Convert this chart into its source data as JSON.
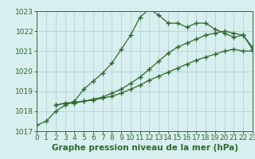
{
  "line1_x": [
    0,
    1,
    2,
    3,
    4,
    5,
    6,
    7,
    8,
    9,
    10,
    11,
    12,
    13,
    14,
    15,
    16,
    17,
    18,
    19,
    20,
    21,
    22,
    23
  ],
  "line1_y": [
    1017.3,
    1017.5,
    1018.0,
    1018.3,
    1018.5,
    1019.1,
    1019.5,
    1019.9,
    1020.4,
    1021.1,
    1021.8,
    1022.7,
    1023.1,
    1022.8,
    1022.4,
    1022.4,
    1022.2,
    1022.4,
    1022.4,
    1022.1,
    1021.9,
    1021.7,
    1021.8,
    1021.1
  ],
  "line2_x": [
    2,
    3,
    4,
    5,
    6,
    7,
    8,
    9,
    10,
    11,
    12,
    13,
    14,
    15,
    16,
    17,
    18,
    19,
    20,
    21,
    22,
    23
  ],
  "line2_y": [
    1018.3,
    1018.4,
    1018.4,
    1018.5,
    1018.6,
    1018.7,
    1018.9,
    1019.1,
    1019.4,
    1019.7,
    1020.1,
    1020.5,
    1020.9,
    1021.2,
    1021.4,
    1021.6,
    1021.8,
    1021.9,
    1022.0,
    1021.9,
    1021.8,
    1021.2
  ],
  "line3_x": [
    2,
    3,
    4,
    5,
    6,
    7,
    8,
    9,
    10,
    11,
    12,
    13,
    14,
    15,
    16,
    17,
    18,
    19,
    20,
    21,
    22,
    23
  ],
  "line3_y": [
    1018.3,
    1018.4,
    1018.45,
    1018.5,
    1018.55,
    1018.65,
    1018.75,
    1018.9,
    1019.1,
    1019.3,
    1019.55,
    1019.75,
    1019.95,
    1020.15,
    1020.35,
    1020.55,
    1020.7,
    1020.85,
    1021.0,
    1021.1,
    1021.0,
    1021.0
  ],
  "line_color": "#2d6a2d",
  "bg_color": "#d8efef",
  "grid_color": "#b0d4d4",
  "xlabel": "Graphe pression niveau de la mer (hPa)",
  "xlim": [
    0,
    23
  ],
  "ylim": [
    1017,
    1023
  ],
  "xticks": [
    0,
    1,
    2,
    3,
    4,
    5,
    6,
    7,
    8,
    9,
    10,
    11,
    12,
    13,
    14,
    15,
    16,
    17,
    18,
    19,
    20,
    21,
    22,
    23
  ],
  "yticks": [
    1017,
    1018,
    1019,
    1020,
    1021,
    1022,
    1023
  ],
  "marker": "+",
  "markersize": 4,
  "markeredgewidth": 1.0,
  "linewidth": 0.9,
  "xlabel_fontsize": 7.5,
  "tick_fontsize": 6.5
}
